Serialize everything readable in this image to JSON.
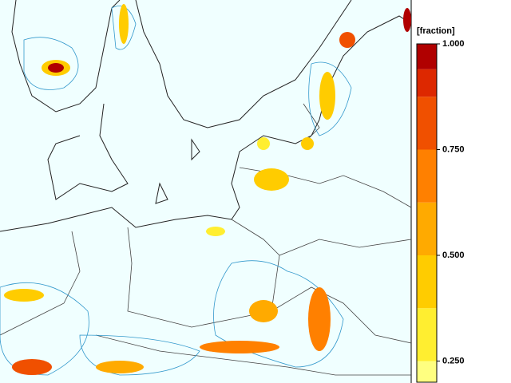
{
  "colorbar": {
    "title": "[fraction]",
    "lim": [
      0.2,
      1.0
    ],
    "ticks": [
      {
        "value": 1.0,
        "label": "1.000"
      },
      {
        "value": 0.75,
        "label": "0.750"
      },
      {
        "value": 0.5,
        "label": "0.500"
      },
      {
        "value": 0.25,
        "label": "0.250"
      }
    ],
    "segments": [
      {
        "from": 0.2,
        "to": 0.25,
        "color": "#ffff80"
      },
      {
        "from": 0.25,
        "to": 0.375,
        "color": "#ffee30"
      },
      {
        "from": 0.375,
        "to": 0.5,
        "color": "#ffcc00"
      },
      {
        "from": 0.5,
        "to": 0.625,
        "color": "#ffaa00"
      },
      {
        "from": 0.625,
        "to": 0.75,
        "color": "#ff8000"
      },
      {
        "from": 0.75,
        "to": 0.875,
        "color": "#f05000"
      },
      {
        "from": 0.875,
        "to": 0.94,
        "color": "#dd2800"
      },
      {
        "from": 0.94,
        "to": 1.0,
        "color": "#b00000"
      }
    ]
  }
}
